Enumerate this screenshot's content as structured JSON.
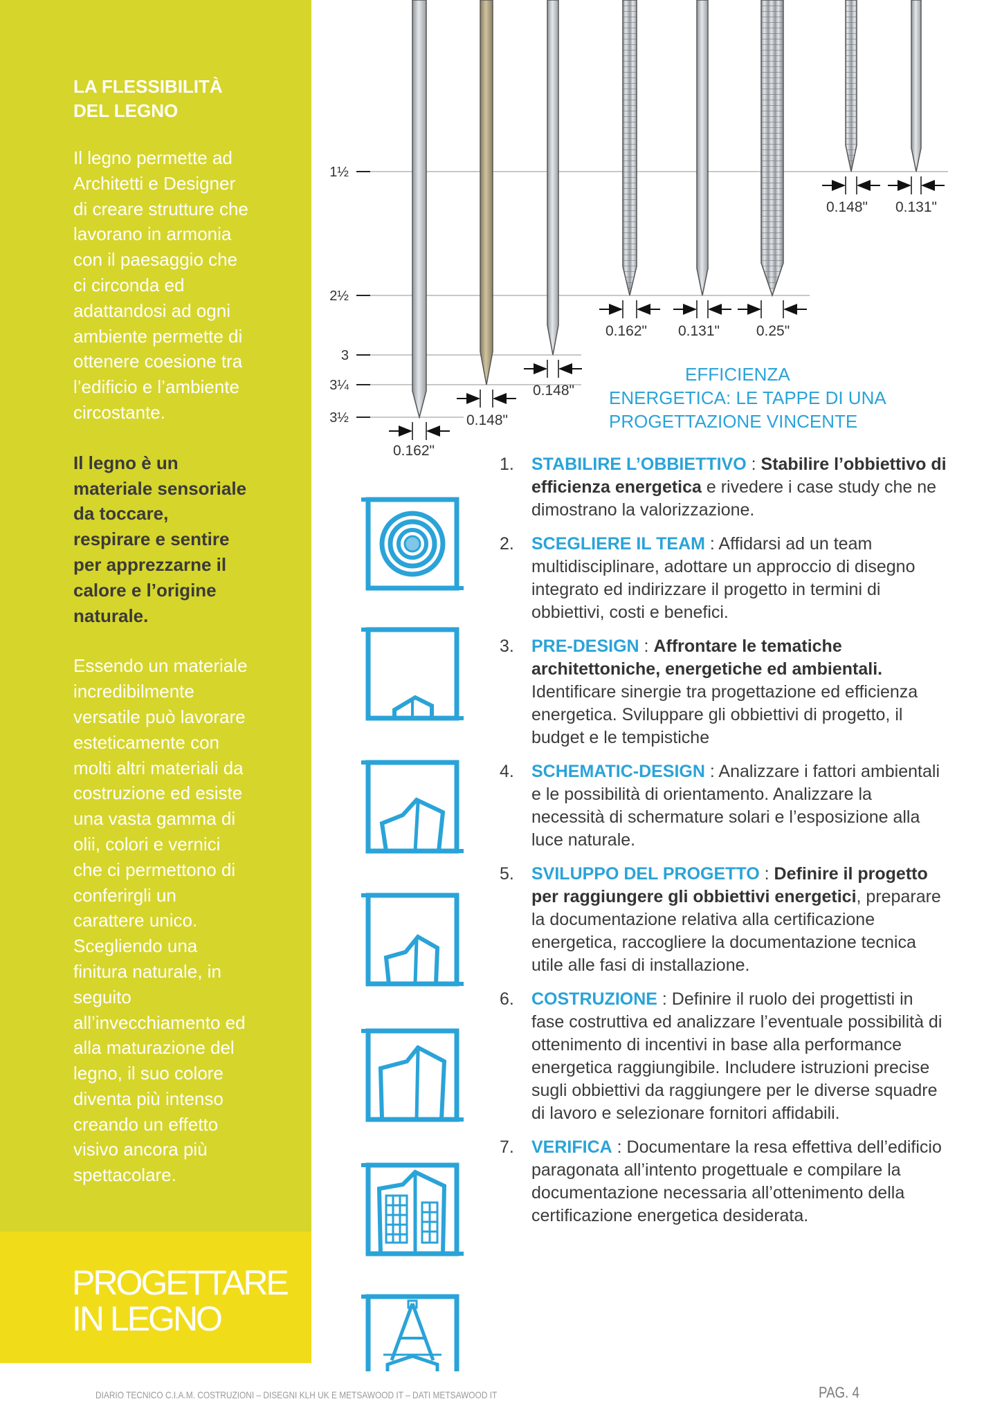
{
  "sidebar": {
    "heading": "LA FLESSIBILITÀ DEL LEGNO",
    "heading_lines": [
      "LA FLESSIBILITÀ",
      "DEL LEGNO"
    ],
    "para1_lines": [
      "Il legno permette ad",
      "Architetti e Designer",
      "di creare strutture che",
      "lavorano in armonia",
      "con il paesaggio che",
      "ci circonda ed",
      "adattandosi ad ogni",
      "ambiente permette di",
      "ottenere coesione tra",
      "l’edificio e l’ambiente",
      "circostante."
    ],
    "para2_lines": [
      "Il legno è un",
      "materiale sensoriale",
      "da toccare,",
      "respirare e sentire",
      "per apprezzarne il",
      "calore e l’origine",
      "naturale."
    ],
    "para3_lines": [
      "Essendo un materiale",
      "incredibilmente",
      "versatile può lavorare",
      "esteticamente con",
      "molti altri materiali da",
      "costruzione ed esiste",
      "una vasta gamma di",
      "olii, colori e vernici",
      "che ci permettono di",
      "conferirgli un",
      "carattere unico.",
      "Scegliendo una",
      "finitura naturale, in",
      "seguito",
      "all’invecchiamento ed",
      "alla maturazione del",
      "legno, il suo colore",
      "diventa più intenso",
      "creando un effetto",
      "visivo ancora più",
      "spettacolare."
    ],
    "title_lines": [
      "PROGETTARE",
      "IN LEGNO"
    ]
  },
  "nail_diagram": {
    "length_labels": [
      "1½",
      "2½",
      "3",
      "3¼",
      "3½"
    ],
    "diameters": [
      "0.162\"",
      "0.148\"",
      "0.148\"",
      "0.162\"",
      "0.131\"",
      "0.25\"",
      "0.148\"",
      "0.131\""
    ]
  },
  "icons": [
    "target-icon",
    "house-roof-icon",
    "house-sketch-icon",
    "house-outline-icon",
    "house-frame-icon",
    "building-icon",
    "architect-compass-icon"
  ],
  "section": {
    "heading_lines": [
      "EFFICIENZA",
      "ENERGETICA: LE TAPPE DI UNA",
      "PROGETTAZIONE VINCENTE"
    ]
  },
  "steps": [
    {
      "num": "1.",
      "title": "STABILIRE L’OBBIETTIVO",
      "sep": " : ",
      "bold": "Stabilire l’obbiettivo di efficienza energetica",
      "text": " e rivedere i case study che ne dimostrano la valorizzazione."
    },
    {
      "num": "2.",
      "title": "SCEGLIERE IL TEAM",
      "sep": " : ",
      "bold": "",
      "text": "Affidarsi ad un team multidisciplinare, adottare un approccio di disegno integrato ed indirizzare il progetto in termini di obbiettivi, costi e benefici."
    },
    {
      "num": "3.",
      "title": "PRE-DESIGN",
      "sep": " : ",
      "bold": "Affrontare le tematiche architettoniche, energetiche ed ambientali.",
      "text": " Identificare sinergie tra progettazione ed efficienza energetica. Sviluppare gli obbiettivi di progetto, il budget e le tempistiche"
    },
    {
      "num": "4.",
      "title": "SCHEMATIC-DESIGN",
      "sep": " : ",
      "bold": "",
      "text": "Analizzare i fattori ambientali e le possibilità di orientamento. Analizzare la necessità di schermature solari e l’esposizione alla luce naturale."
    },
    {
      "num": "5.",
      "title": "SVILUPPO DEL PROGETTO",
      "sep": " : ",
      "bold": "Definire il progetto per raggiungere gli obbiettivi energetici",
      "text": ", preparare la documentazione relativa alla certificazione energetica, raccogliere la documentazione tecnica utile alle fasi di installazione."
    },
    {
      "num": "6.",
      "title": "COSTRUZIONE",
      "sep": " : ",
      "bold": "",
      "text": "Definire il ruolo dei progettisti in fase costruttiva ed analizzare l’eventuale possibilità di ottenimento di incentivi in base alla performance energetica raggiungibile. Includere istruzioni precise sugli obbiettivi da raggiungere per le diverse squadre di lavoro e selezionare fornitori affidabili."
    },
    {
      "num": "7.",
      "title": "VERIFICA",
      "sep": " : ",
      "bold": "",
      "text": "Documentare la resa effettiva dell’edificio paragonata all’intento progettuale e compilare la documentazione necessaria all’ottenimento della certificazione energetica desiderata."
    }
  ],
  "footer": {
    "credits": "DIARIO TECNICO C.I.A.M. COSTRUZIONI – DISEGNI KLH UK E METSAWOOD IT – DATI METSAWOOD IT",
    "page": "PAG. 4"
  },
  "colors": {
    "sidebar": "#d6d52b",
    "band": "#f1dc1a",
    "accent": "#2aa3d8"
  }
}
